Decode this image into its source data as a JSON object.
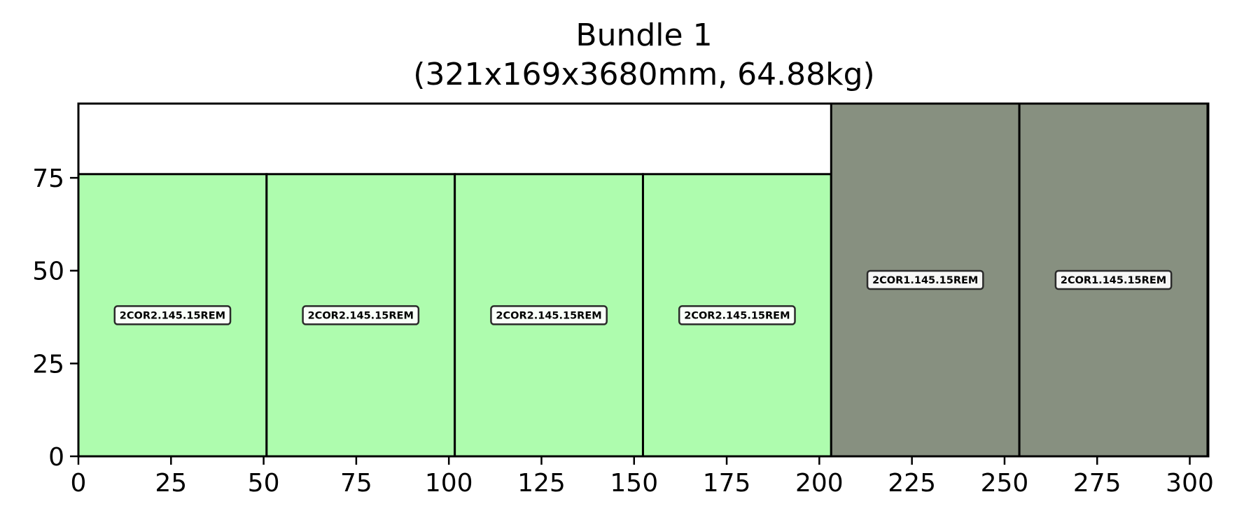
{
  "chart_data": {
    "type": "bar",
    "title": "Bundle 1",
    "subtitle": "(321x169x3680mm, 64.88kg)",
    "xlabel": "",
    "ylabel": "",
    "xlim": [
      0,
      305
    ],
    "ylim": [
      0,
      95
    ],
    "xticks": [
      0,
      25,
      50,
      75,
      100,
      125,
      150,
      175,
      200,
      225,
      250,
      275,
      300
    ],
    "yticks": [
      0,
      25,
      50,
      75
    ],
    "grid": false,
    "legend": "none",
    "items": [
      {
        "label": "2COR2.145.15REM",
        "x0": 0,
        "x1": 50.8,
        "y0": 0,
        "y1": 76,
        "color": "#aefcae"
      },
      {
        "label": "2COR2.145.15REM",
        "x0": 50.8,
        "x1": 101.6,
        "y0": 0,
        "y1": 76,
        "color": "#aefcae"
      },
      {
        "label": "2COR2.145.15REM",
        "x0": 101.6,
        "x1": 152.4,
        "y0": 0,
        "y1": 76,
        "color": "#aefcae"
      },
      {
        "label": "2COR2.145.15REM",
        "x0": 152.4,
        "x1": 203.2,
        "y0": 0,
        "y1": 76,
        "color": "#aefcae"
      },
      {
        "label": "2COR1.145.15REM",
        "x0": 203.2,
        "x1": 254.0,
        "y0": 0,
        "y1": 95,
        "color": "#879080"
      },
      {
        "label": "2COR1.145.15REM",
        "x0": 254.0,
        "x1": 304.8,
        "y0": 0,
        "y1": 95,
        "color": "#879080"
      }
    ]
  }
}
